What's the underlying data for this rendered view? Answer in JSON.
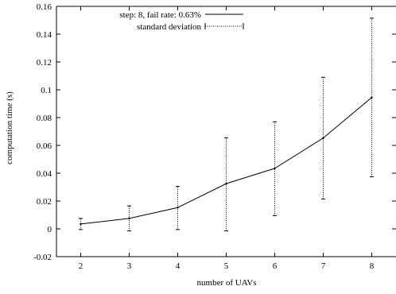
{
  "chart_data": {
    "type": "line",
    "xlabel": "number of UAVs",
    "ylabel": "computation time (s)",
    "xlim": [
      1.5,
      8.5
    ],
    "ylim": [
      -0.02,
      0.16
    ],
    "x_ticks": [
      2,
      3,
      4,
      5,
      6,
      7,
      8
    ],
    "y_ticks": [
      -0.02,
      0,
      0.02,
      0.04,
      0.06,
      0.08,
      0.1,
      0.12,
      0.14,
      0.16
    ],
    "y_tick_labels": [
      "-0.02",
      "0",
      "0.02",
      "0.04",
      "0.06",
      "0.08",
      "0.1",
      "0.12",
      "0.14",
      "0.16"
    ],
    "grid": false,
    "legend_position": "top-center",
    "series": [
      {
        "name": "step: 8, fail rate: 0.63%",
        "style": "solid",
        "color": "#000000",
        "x": [
          2,
          3,
          4,
          5,
          6,
          7,
          8
        ],
        "y": [
          0.0035,
          0.0075,
          0.0153,
          0.0325,
          0.0435,
          0.0653,
          0.0945
        ]
      }
    ],
    "error_bars": {
      "name": "standard deviation",
      "style": "dotted",
      "color": "#000000",
      "x": [
        2,
        3,
        4,
        5,
        6,
        7,
        8
      ],
      "lower": [
        -0.0005,
        -0.0015,
        -0.0005,
        -0.0015,
        0.0095,
        0.0215,
        0.0375
      ],
      "upper": [
        0.0075,
        0.0165,
        0.0305,
        0.0655,
        0.077,
        0.109,
        0.1515
      ]
    }
  }
}
